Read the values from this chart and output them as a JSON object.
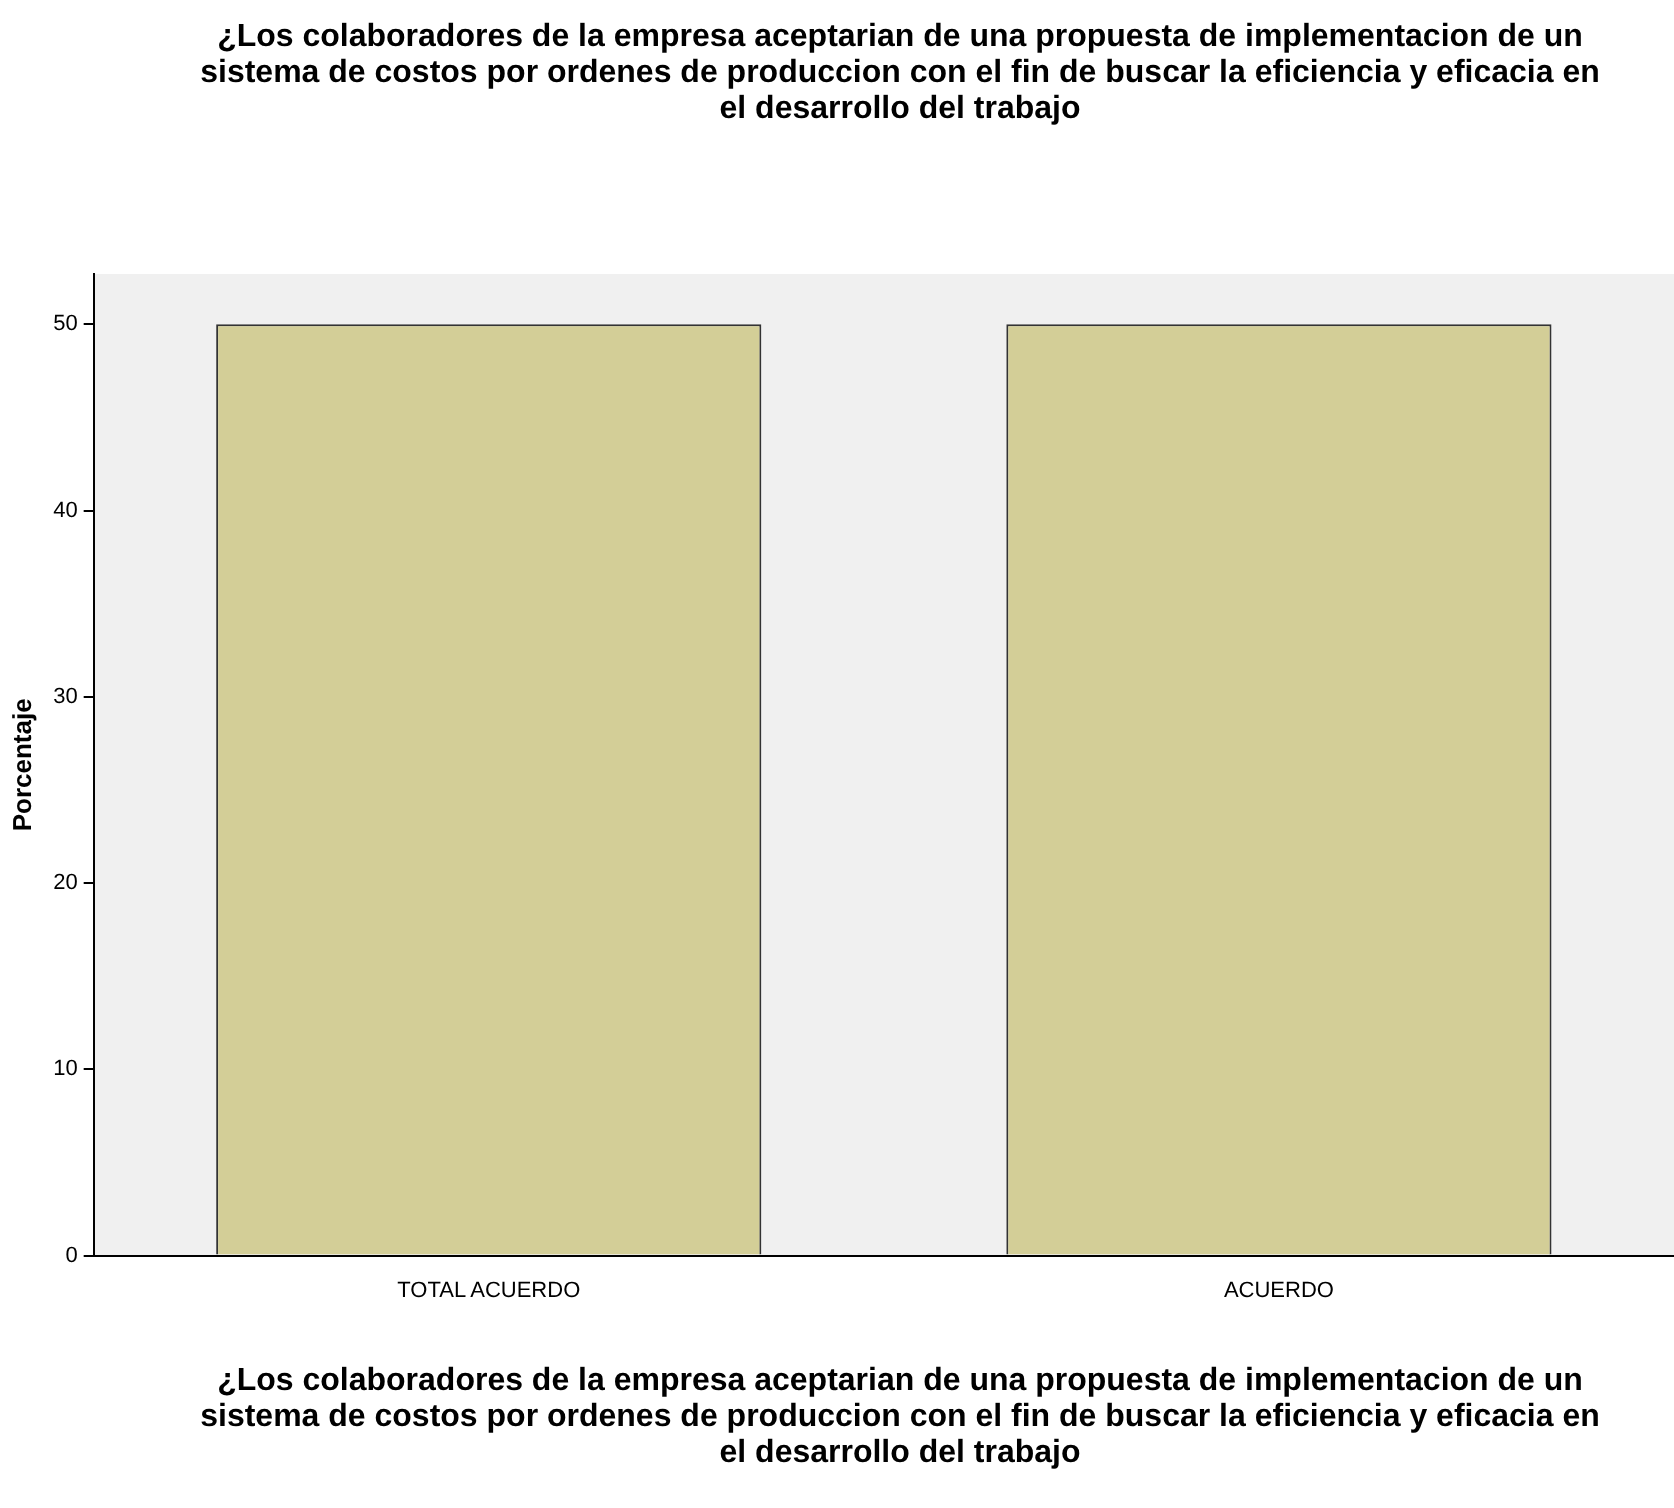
{
  "chart_data": {
    "type": "bar",
    "title": "¿Los colaboradores de la empresa aceptarian de una propuesta de implementacion de un sistema de costos por ordenes de produccion con el fin de buscar la eficiencia y eficacia en el desarrollo del trabajo",
    "xlabel": "¿Los colaboradores de la empresa aceptarian de una propuesta de implementacion de un sistema de costos por ordenes de produccion con el fin de buscar la eficiencia y eficacia en el desarrollo del trabajo",
    "ylabel": "Porcentaje",
    "categories": [
      "TOTAL ACUERDO",
      "ACUERDO"
    ],
    "values": [
      50,
      50
    ],
    "color": "#d3ce97",
    "ylim": [
      0,
      52.7
    ],
    "yticks": [
      0,
      10,
      20,
      30,
      40,
      50
    ],
    "legend": false,
    "grid": false
  }
}
